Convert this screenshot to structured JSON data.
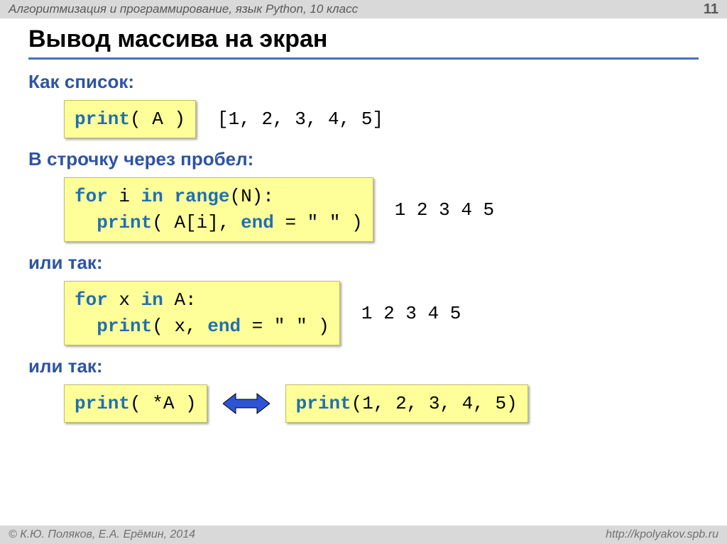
{
  "header": {
    "left": "Алгоритмизация и программирование, язык Python, 10 класс",
    "page_number": "11"
  },
  "title": "Вывод массива на экран",
  "colors": {
    "accent": "#4472c4",
    "subheading": "#2e54a1",
    "codebox_bg": "#ffff99",
    "codebox_border": "#bfbf60",
    "keyword": "#1f6fb4",
    "header_bg": "#d9d9d9",
    "arrow": "#2e54d6"
  },
  "sections": [
    {
      "heading": "Как список:",
      "code_tokens": [
        [
          "print",
          "kw"
        ],
        [
          "( A )",
          "plain"
        ]
      ],
      "output": "[1, 2, 3, 4, 5]"
    },
    {
      "heading": "В строчку через пробел:",
      "code_tokens": [
        [
          "for",
          "kw"
        ],
        [
          " i ",
          "plain"
        ],
        [
          "in",
          "kw"
        ],
        [
          " ",
          "plain"
        ],
        [
          "range",
          "kw"
        ],
        [
          "(N):\n",
          "plain"
        ],
        [
          "  ",
          "plain"
        ],
        [
          "print",
          "kw"
        ],
        [
          "( A[i], ",
          "plain"
        ],
        [
          "end",
          "kw"
        ],
        [
          " = \" \" )",
          "plain"
        ]
      ],
      "output": "1 2 3 4 5"
    },
    {
      "heading": "или так:",
      "code_tokens": [
        [
          "for",
          "kw"
        ],
        [
          " x ",
          "plain"
        ],
        [
          "in",
          "kw"
        ],
        [
          " A:\n",
          "plain"
        ],
        [
          "  ",
          "plain"
        ],
        [
          "print",
          "kw"
        ],
        [
          "( x, ",
          "plain"
        ],
        [
          "end",
          "kw"
        ],
        [
          " = \" \" )",
          "plain"
        ]
      ],
      "output": "1 2 3 4 5"
    },
    {
      "heading": "или так:",
      "code_tokens": [
        [
          "print",
          "kw"
        ],
        [
          "( *A )",
          "plain"
        ]
      ],
      "arrow": true,
      "code2_tokens": [
        [
          "print",
          "kw"
        ],
        [
          "(1, 2, 3, 4, 5)",
          "plain"
        ]
      ]
    }
  ],
  "footer": {
    "left": "© К.Ю. Поляков, Е.А. Ерёмин, 2014",
    "right": "http://kpolyakov.spb.ru"
  }
}
